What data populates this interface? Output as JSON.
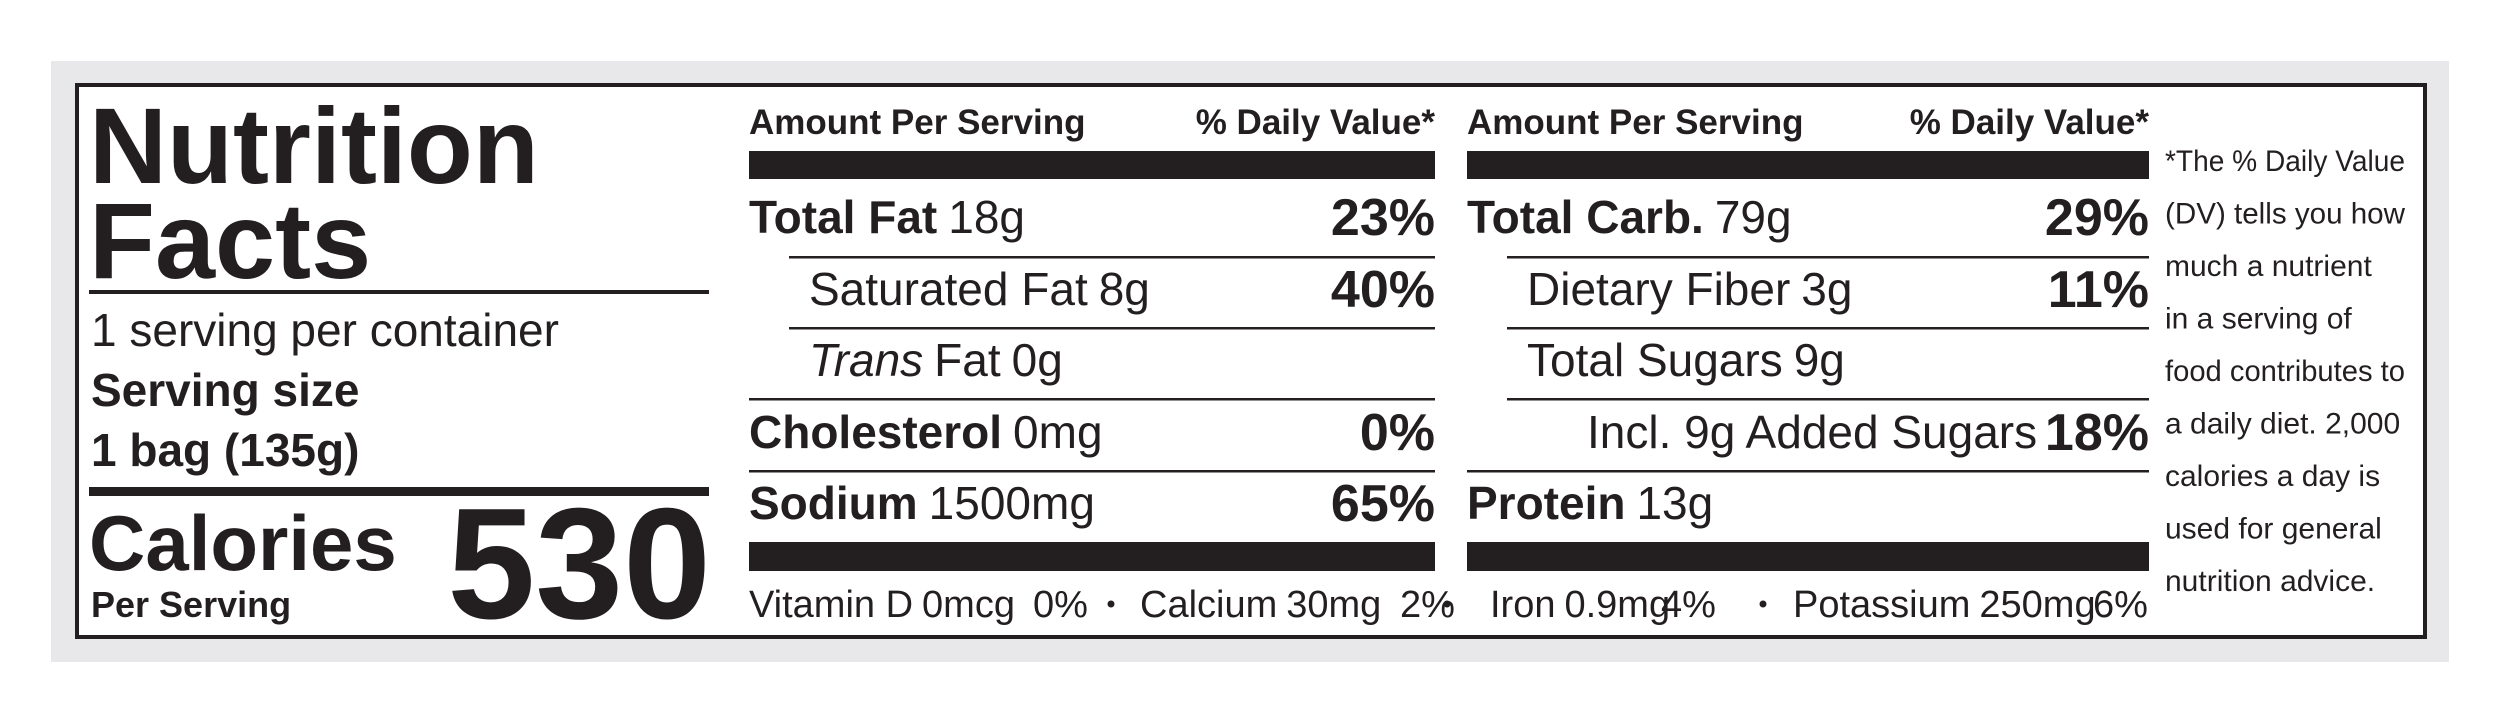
{
  "title": [
    "Nutrition",
    "Facts"
  ],
  "servings_per_container": "1 serving per container",
  "serving_size_label": "Serving size",
  "serving_size": "1 bag (135g)",
  "calories_label": "Calories",
  "calories_sublabel": "Per Serving",
  "calories": 530,
  "columns": [
    {
      "header_amount": "Amount Per Serving",
      "header_dv": "% Daily Value*",
      "rows": [
        {
          "name": "Total Fat",
          "amount": "18g",
          "dv": "23%"
        },
        {
          "name": "Saturated Fat",
          "amount": "8g",
          "dv": "40%"
        },
        {
          "name_italic": "Trans",
          "name": "Fat",
          "amount": "0g"
        },
        {
          "name": "Cholesterol",
          "amount": "0mg",
          "dv": "0%"
        },
        {
          "name": "Sodium",
          "amount": "1500mg",
          "dv": "65%"
        }
      ]
    },
    {
      "header_amount": "Amount Per Serving",
      "header_dv": "% Daily Value*",
      "rows": [
        {
          "name": "Total Carb.",
          "amount": "79g",
          "dv": "29%"
        },
        {
          "name": "Dietary Fiber",
          "amount": "3g",
          "dv": "11%"
        },
        {
          "name": "Total Sugars",
          "amount": "9g"
        },
        {
          "name": "Incl. 9g Added Sugars",
          "dv": "18%"
        },
        {
          "name": "Protein",
          "amount": "13g"
        }
      ]
    }
  ],
  "micronutrients": [
    {
      "name": "Vitamin D",
      "amount": "0mcg",
      "dv": "0%"
    },
    {
      "name": "Calcium",
      "amount": "30mg",
      "dv": "2%"
    },
    {
      "name": "Iron",
      "amount": "0.9mg",
      "dv": "4%"
    },
    {
      "name": "Potassium",
      "amount": "250mg",
      "dv": "6%"
    }
  ],
  "footnote": [
    "*The % Daily Value",
    "(DV) tells you how",
    "much a nutrient",
    "in a serving of",
    "food contributes to",
    "a daily diet. 2,000",
    "calories a day is",
    "used for general",
    "nutrition advice."
  ]
}
